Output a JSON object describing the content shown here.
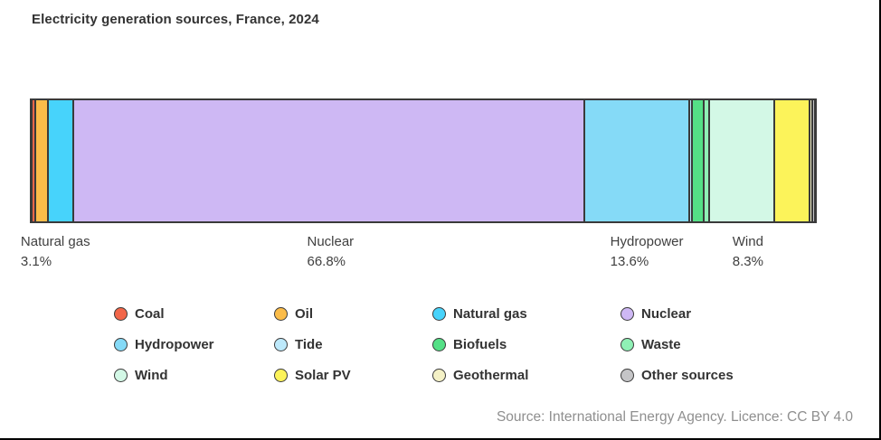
{
  "title": "Electricity generation sources, France, 2024",
  "chart_data": {
    "type": "bar",
    "subtype": "stacked-horizontal-single-bar",
    "unit": "%",
    "total": 100,
    "series": [
      {
        "name": "Coal",
        "value": 0.2,
        "color": "#F26649"
      },
      {
        "name": "Oil",
        "value": 1.5,
        "color": "#FBBC49"
      },
      {
        "name": "Natural gas",
        "value": 3.1,
        "color": "#47D3FB"
      },
      {
        "name": "Nuclear",
        "value": 66.8,
        "color": "#CEB8F4"
      },
      {
        "name": "Hydropower",
        "value": 13.6,
        "color": "#85DAF7"
      },
      {
        "name": "Tide",
        "value": 0.1,
        "color": "#BDE9FB"
      },
      {
        "name": "Biofuels",
        "value": 1.3,
        "color": "#54E086"
      },
      {
        "name": "Waste",
        "value": 0.5,
        "color": "#8FF0B5"
      },
      {
        "name": "Wind",
        "value": 8.3,
        "color": "#D3F8E6"
      },
      {
        "name": "Solar PV",
        "value": 4.4,
        "color": "#FCF35A"
      },
      {
        "name": "Geothermal",
        "value": 0.1,
        "color": "#F4F1C6"
      },
      {
        "name": "Other sources",
        "value": 0.1,
        "color": "#C5C5C7"
      }
    ],
    "callouts": [
      {
        "source": "Natural gas",
        "percent_label": "3.1%"
      },
      {
        "source": "Nuclear",
        "percent_label": "66.8%"
      },
      {
        "source": "Hydropower",
        "percent_label": "13.6%"
      },
      {
        "source": "Wind",
        "percent_label": "8.3%"
      }
    ],
    "legend_position": "bottom",
    "axes": "none"
  },
  "source_note": "Source: International Energy Agency. Licence: CC BY 4.0",
  "colors": {
    "outline": "#3A3A3A",
    "title_text": "#333333",
    "label_text": "#3F3F3F",
    "source_text": "#8F8F8F",
    "frame": "#000000",
    "background": "#FFFFFF"
  }
}
